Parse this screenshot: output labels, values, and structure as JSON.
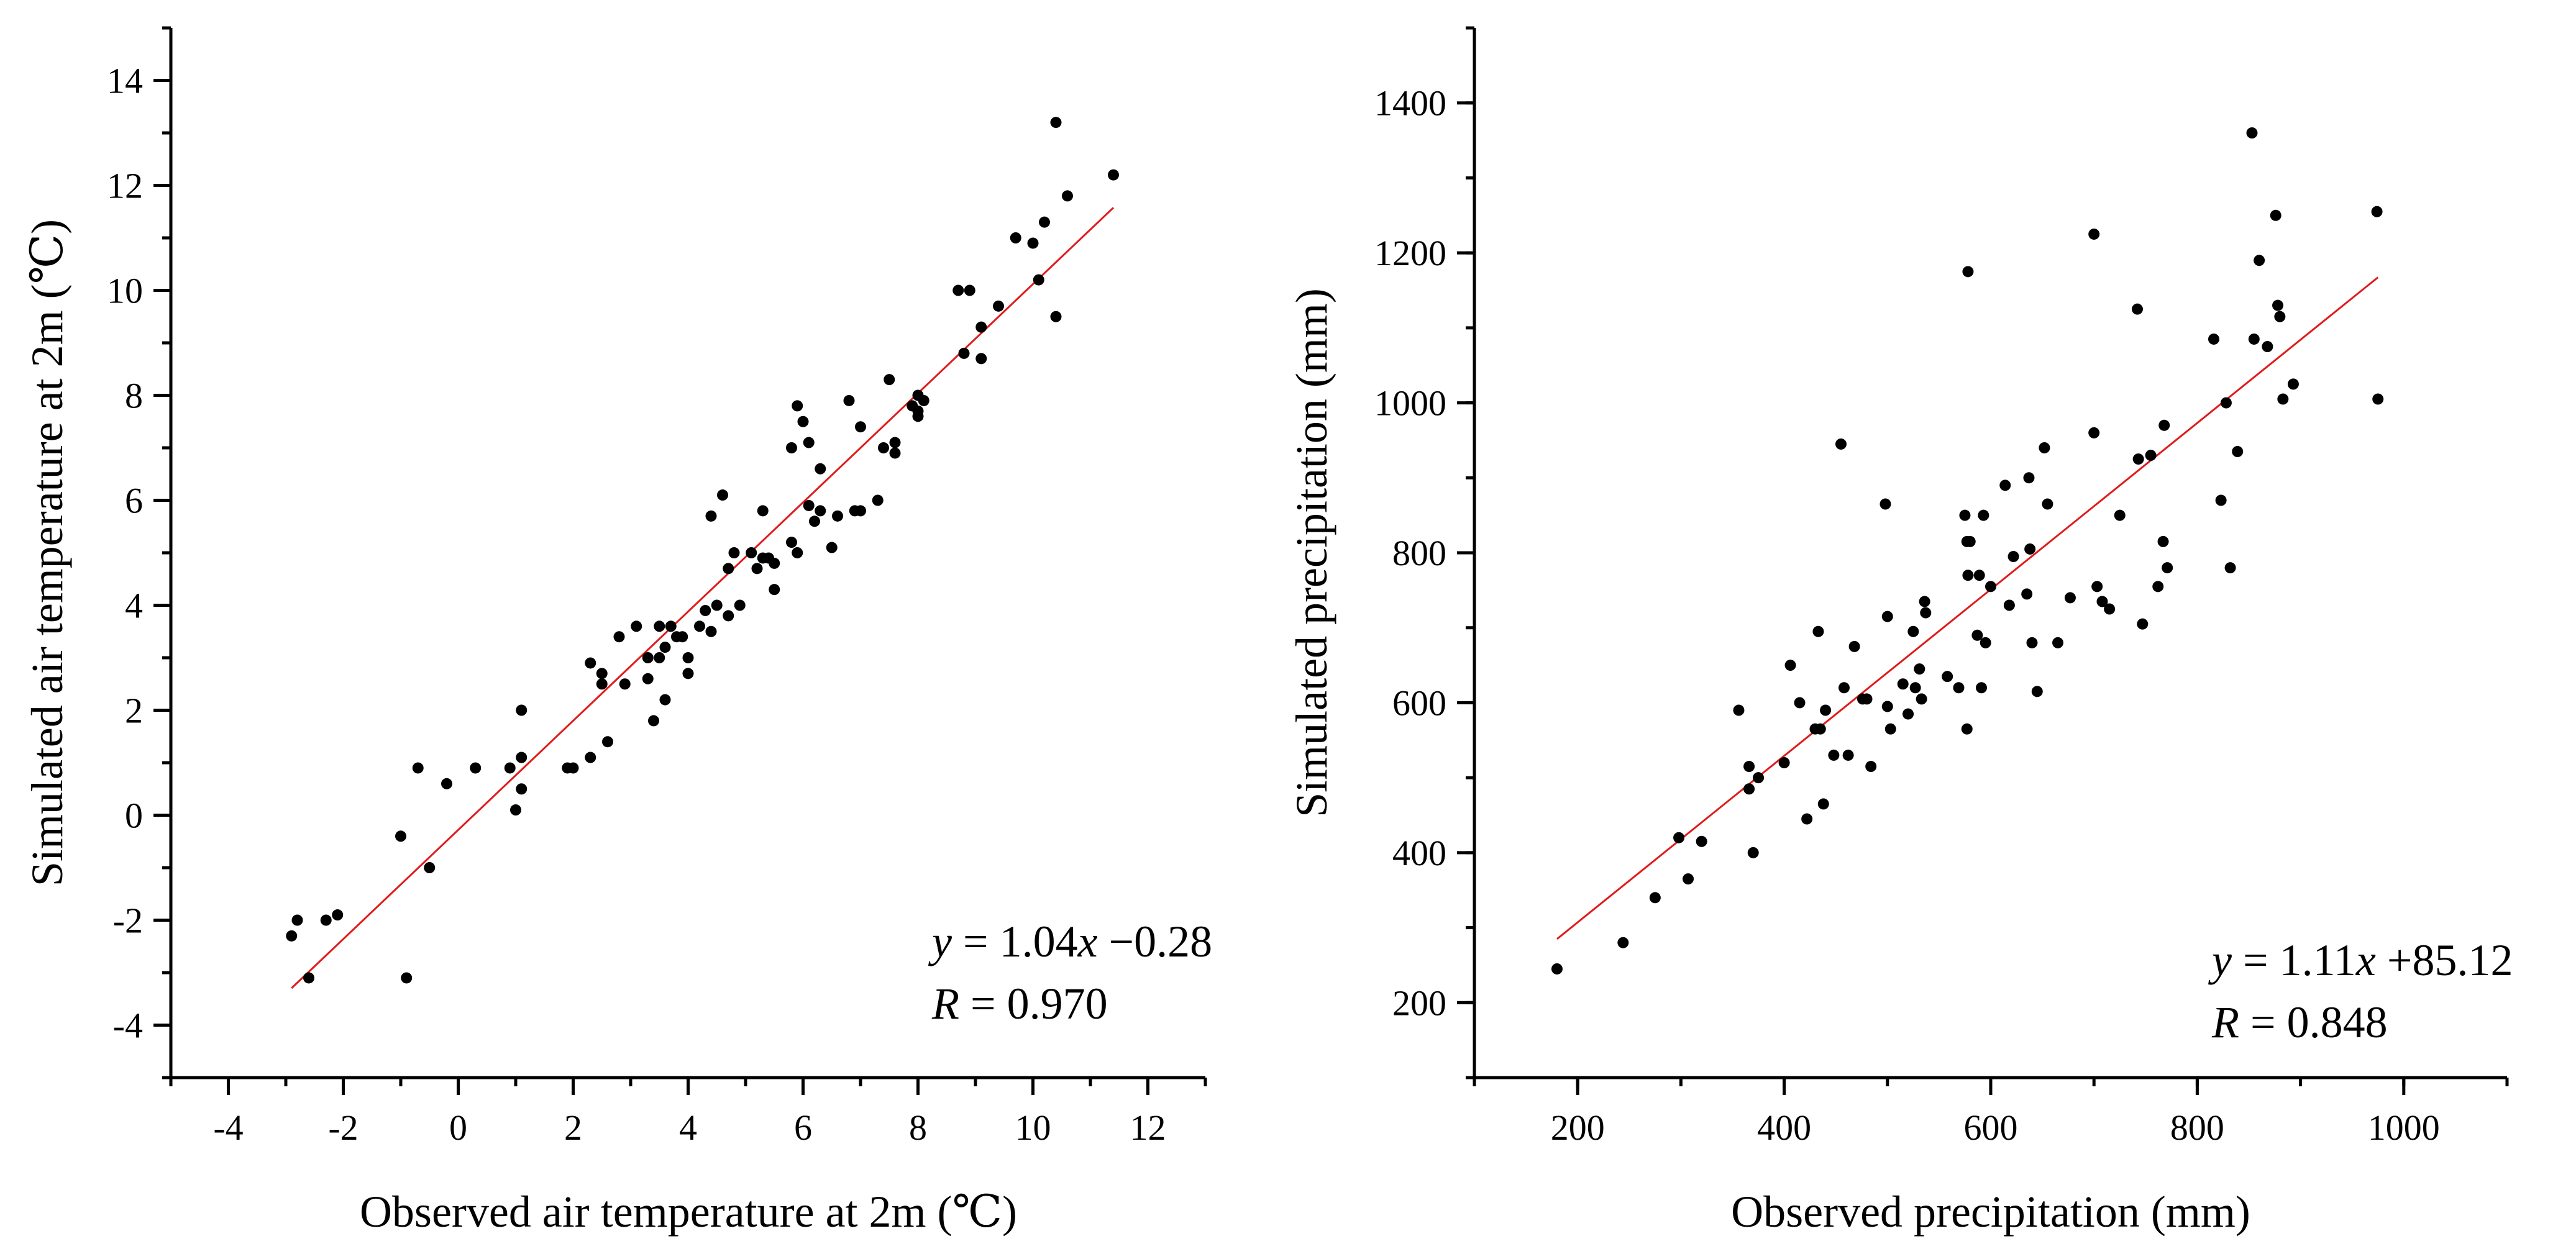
{
  "chart_data": [
    {
      "type": "scatter",
      "xlabel": "Observed air temperature at 2m (℃)",
      "ylabel": "Simulated air temperature at 2m (℃)",
      "xlim": [
        -5,
        13
      ],
      "ylim": [
        -5,
        15
      ],
      "xticks": [
        -4,
        -2,
        0,
        2,
        4,
        6,
        8,
        10,
        12
      ],
      "yticks": [
        -4,
        -2,
        0,
        2,
        4,
        6,
        8,
        10,
        12,
        14
      ],
      "xtick_labels": [
        "-4",
        "-2",
        "0",
        "2",
        "4",
        "6",
        "8",
        "10",
        "12"
      ],
      "ytick_labels": [
        "-4",
        "-2",
        "0",
        "2",
        "4",
        "6",
        "8",
        "10",
        "12",
        "14"
      ],
      "x_minor_step": 1,
      "y_minor_step": 1,
      "fit": {
        "slope": 1.04,
        "intercept": -0.28,
        "x_range": [
          -2.9,
          11.4
        ]
      },
      "equation": {
        "y_var": "y",
        "eq_mid": " = 1.04",
        "x_var": "x",
        "eq_tail": " −0.28"
      },
      "r_text": {
        "r_var": "R",
        "r_tail": " = 0.970"
      },
      "points": [
        [
          -2.9,
          -2.3
        ],
        [
          -2.8,
          -2.0
        ],
        [
          -2.6,
          -3.1
        ],
        [
          -2.3,
          -2.0
        ],
        [
          -2.1,
          -1.9
        ],
        [
          -1.0,
          -0.4
        ],
        [
          -0.9,
          -3.1
        ],
        [
          -0.7,
          0.9
        ],
        [
          -0.5,
          -1.0
        ],
        [
          -0.2,
          0.6
        ],
        [
          0.3,
          0.9
        ],
        [
          0.9,
          0.9
        ],
        [
          1.0,
          0.1
        ],
        [
          1.1,
          0.5
        ],
        [
          1.1,
          1.1
        ],
        [
          1.1,
          2.0
        ],
        [
          1.9,
          0.9
        ],
        [
          2.0,
          0.9
        ],
        [
          2.3,
          2.9
        ],
        [
          2.3,
          1.1
        ],
        [
          2.5,
          2.5
        ],
        [
          2.6,
          1.4
        ],
        [
          2.5,
          2.7
        ],
        [
          2.8,
          3.4
        ],
        [
          2.9,
          2.5
        ],
        [
          3.1,
          3.6
        ],
        [
          3.3,
          3.0
        ],
        [
          3.3,
          2.6
        ],
        [
          3.4,
          1.8
        ],
        [
          3.5,
          3.6
        ],
        [
          3.5,
          3.0
        ],
        [
          3.6,
          2.2
        ],
        [
          3.6,
          3.2
        ],
        [
          3.7,
          3.6
        ],
        [
          3.8,
          3.4
        ],
        [
          3.9,
          3.4
        ],
        [
          4.0,
          3.0
        ],
        [
          4.0,
          2.7
        ],
        [
          4.2,
          3.6
        ],
        [
          4.3,
          3.9
        ],
        [
          4.4,
          5.7
        ],
        [
          4.4,
          3.5
        ],
        [
          4.5,
          4.0
        ],
        [
          4.6,
          6.1
        ],
        [
          4.7,
          3.8
        ],
        [
          4.7,
          4.7
        ],
        [
          4.8,
          5.0
        ],
        [
          4.9,
          4.0
        ],
        [
          5.1,
          5.0
        ],
        [
          5.2,
          4.7
        ],
        [
          5.3,
          4.9
        ],
        [
          5.3,
          5.8
        ],
        [
          5.4,
          4.9
        ],
        [
          5.5,
          4.3
        ],
        [
          5.5,
          4.8
        ],
        [
          5.8,
          5.2
        ],
        [
          5.8,
          7.0
        ],
        [
          5.9,
          7.8
        ],
        [
          5.9,
          5.0
        ],
        [
          6.0,
          7.5
        ],
        [
          6.1,
          5.9
        ],
        [
          6.1,
          7.1
        ],
        [
          6.2,
          5.6
        ],
        [
          6.3,
          6.6
        ],
        [
          6.3,
          5.8
        ],
        [
          6.5,
          5.1
        ],
        [
          6.6,
          5.7
        ],
        [
          6.8,
          7.9
        ],
        [
          6.9,
          5.8
        ],
        [
          7.0,
          5.8
        ],
        [
          7.0,
          7.4
        ],
        [
          7.3,
          6.0
        ],
        [
          7.4,
          7.0
        ],
        [
          7.5,
          8.3
        ],
        [
          7.6,
          7.1
        ],
        [
          7.6,
          6.9
        ],
        [
          7.9,
          7.8
        ],
        [
          8.0,
          8.0
        ],
        [
          8.0,
          7.7
        ],
        [
          8.0,
          7.6
        ],
        [
          8.1,
          7.9
        ],
        [
          8.7,
          10.0
        ],
        [
          8.8,
          8.8
        ],
        [
          8.9,
          10.0
        ],
        [
          9.1,
          9.3
        ],
        [
          9.1,
          8.7
        ],
        [
          9.4,
          9.7
        ],
        [
          9.7,
          11.0
        ],
        [
          10.0,
          10.9
        ],
        [
          10.1,
          10.2
        ],
        [
          10.2,
          11.3
        ],
        [
          10.4,
          9.5
        ],
        [
          10.4,
          13.2
        ],
        [
          10.6,
          11.8
        ],
        [
          11.4,
          12.2
        ]
      ]
    },
    {
      "type": "scatter",
      "xlabel": "Observed precipitation (mm)",
      "ylabel": "Simulated precipitation (mm)",
      "xlim": [
        100,
        1100
      ],
      "ylim": [
        100,
        1500
      ],
      "xticks": [
        200,
        400,
        600,
        800,
        1000
      ],
      "yticks": [
        200,
        400,
        600,
        800,
        1000,
        1200,
        1400
      ],
      "xtick_labels": [
        "200",
        "400",
        "600",
        "800",
        "1000"
      ],
      "ytick_labels": [
        "200",
        "400",
        "600",
        "800",
        "1000",
        "1200",
        "1400"
      ],
      "x_minor_step": 100,
      "y_minor_step": 100,
      "fit": {
        "slope": 1.11,
        "intercept": 85.12,
        "x_range": [
          180,
          975
        ]
      },
      "equation": {
        "y_var": "y",
        "eq_mid": " = 1.11",
        "x_var": "x",
        "eq_tail": " +85.12"
      },
      "r_text": {
        "r_var": "R",
        "r_tail": " = 0.848"
      },
      "points": [
        [
          180,
          245
        ],
        [
          244,
          280
        ],
        [
          275,
          340
        ],
        [
          298,
          420
        ],
        [
          307,
          365
        ],
        [
          320,
          415
        ],
        [
          356,
          590
        ],
        [
          366,
          515
        ],
        [
          366,
          485
        ],
        [
          370,
          400
        ],
        [
          375,
          500
        ],
        [
          400,
          520
        ],
        [
          406,
          650
        ],
        [
          415,
          600
        ],
        [
          422,
          445
        ],
        [
          430,
          565
        ],
        [
          433,
          695
        ],
        [
          435,
          565
        ],
        [
          438,
          465
        ],
        [
          440,
          590
        ],
        [
          448,
          530
        ],
        [
          455,
          945
        ],
        [
          458,
          620
        ],
        [
          462,
          530
        ],
        [
          468,
          675
        ],
        [
          476,
          605
        ],
        [
          480,
          605
        ],
        [
          484,
          515
        ],
        [
          498,
          865
        ],
        [
          500,
          715
        ],
        [
          500,
          595
        ],
        [
          503,
          565
        ],
        [
          515,
          625
        ],
        [
          520,
          585
        ],
        [
          525,
          695
        ],
        [
          527,
          620
        ],
        [
          531,
          645
        ],
        [
          533,
          605
        ],
        [
          536,
          735
        ],
        [
          537,
          720
        ],
        [
          558,
          635
        ],
        [
          569,
          620
        ],
        [
          575,
          850
        ],
        [
          577,
          815
        ],
        [
          577,
          565
        ],
        [
          578,
          1175
        ],
        [
          578,
          770
        ],
        [
          580,
          815
        ],
        [
          587,
          690
        ],
        [
          589,
          770
        ],
        [
          591,
          620
        ],
        [
          593,
          850
        ],
        [
          595,
          680
        ],
        [
          600,
          755
        ],
        [
          614,
          890
        ],
        [
          618,
          730
        ],
        [
          622,
          795
        ],
        [
          635,
          745
        ],
        [
          637,
          900
        ],
        [
          638,
          805
        ],
        [
          640,
          680
        ],
        [
          645,
          615
        ],
        [
          652,
          940
        ],
        [
          655,
          865
        ],
        [
          665,
          680
        ],
        [
          677,
          740
        ],
        [
          700,
          960
        ],
        [
          700,
          1225
        ],
        [
          703,
          755
        ],
        [
          708,
          735
        ],
        [
          715,
          725
        ],
        [
          725,
          850
        ],
        [
          742,
          1125
        ],
        [
          743,
          925
        ],
        [
          747,
          705
        ],
        [
          755,
          930
        ],
        [
          762,
          755
        ],
        [
          767,
          815
        ],
        [
          768,
          970
        ],
        [
          771,
          780
        ],
        [
          816,
          1085
        ],
        [
          823,
          870
        ],
        [
          828,
          1000
        ],
        [
          832,
          780
        ],
        [
          839,
          935
        ],
        [
          853,
          1360
        ],
        [
          855,
          1085
        ],
        [
          860,
          1190
        ],
        [
          868,
          1075
        ],
        [
          876,
          1250
        ],
        [
          878,
          1130
        ],
        [
          880,
          1115
        ],
        [
          883,
          1005
        ],
        [
          893,
          1025
        ],
        [
          974,
          1255
        ],
        [
          975,
          1005
        ]
      ]
    }
  ]
}
